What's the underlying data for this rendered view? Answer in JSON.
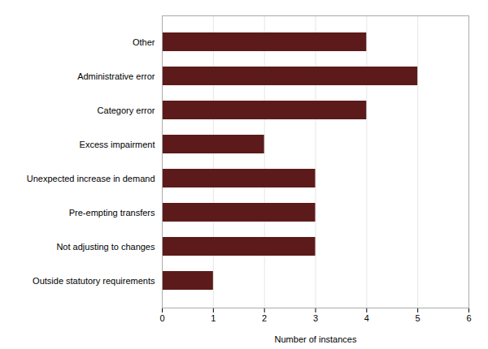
{
  "chart_data": {
    "type": "bar",
    "orientation": "horizontal",
    "categories": [
      "Outside statutory requirements",
      "Not adjusting to changes",
      "Pre-empting transfers",
      "Unexpected increase in demand",
      "Excess impairment",
      "Category error",
      "Administrative error",
      "Other"
    ],
    "values": [
      1,
      3,
      3,
      3,
      2,
      4,
      5,
      4
    ],
    "color": "#5C1A1A",
    "xlabel": "Number of instances",
    "xlim": [
      0,
      6
    ],
    "xticks": [
      0,
      1,
      2,
      3,
      4,
      5,
      6
    ],
    "grid": true
  }
}
